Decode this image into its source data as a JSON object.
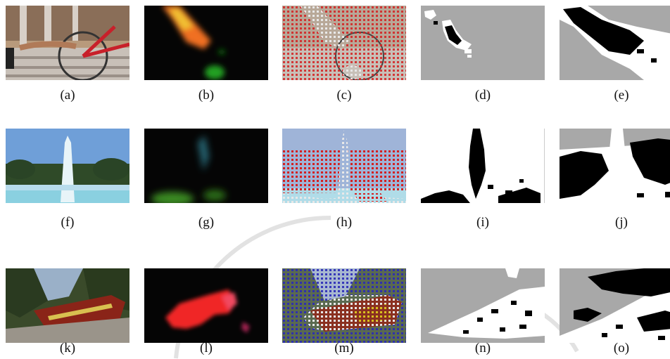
{
  "figure": {
    "captions": [
      "(a)",
      "(b)",
      "(c)",
      "(d)",
      "(e)",
      "(f)",
      "(g)",
      "(h)",
      "(i)",
      "(j)",
      "(k)",
      "(l)",
      "(m)",
      "(n)",
      "(o)"
    ]
  },
  "colors": {
    "background": "#ffffff",
    "mask_gray": "#a8a8a8",
    "foreground_black": "#000000",
    "foreground_white": "#ffffff",
    "point_red": "#d42020",
    "point_blue": "#2a2ab8",
    "point_white": "#e8e8e8",
    "point_yellow": "#d8c020",
    "watermark": "#e0e0e0"
  },
  "panels": [
    {
      "row": 1,
      "col": 1,
      "content": "photo-bicycle-steps"
    },
    {
      "row": 1,
      "col": 2,
      "content": "motion-flow-orange-green"
    },
    {
      "row": 1,
      "col": 3,
      "content": "photo-bicycle-with-red-point-grid"
    },
    {
      "row": 1,
      "col": 4,
      "content": "binary-mask-gray-background"
    },
    {
      "row": 1,
      "col": 5,
      "content": "binary-mask-gray-background"
    },
    {
      "row": 2,
      "col": 1,
      "content": "photo-fountain"
    },
    {
      "row": 2,
      "col": 2,
      "content": "motion-flow-cyan-green"
    },
    {
      "row": 2,
      "col": 3,
      "content": "photo-fountain-with-red-point-grid"
    },
    {
      "row": 2,
      "col": 4,
      "content": "binary-mask-white-background"
    },
    {
      "row": 2,
      "col": 5,
      "content": "binary-mask-gray-background"
    },
    {
      "row": 3,
      "col": 1,
      "content": "photo-train"
    },
    {
      "row": 3,
      "col": 2,
      "content": "motion-flow-red-magenta"
    },
    {
      "row": 3,
      "col": 3,
      "content": "photo-train-with-blue-white-yellow-point-grid"
    },
    {
      "row": 3,
      "col": 4,
      "content": "binary-mask-gray-background"
    },
    {
      "row": 3,
      "col": 5,
      "content": "binary-mask-gray-background"
    }
  ]
}
